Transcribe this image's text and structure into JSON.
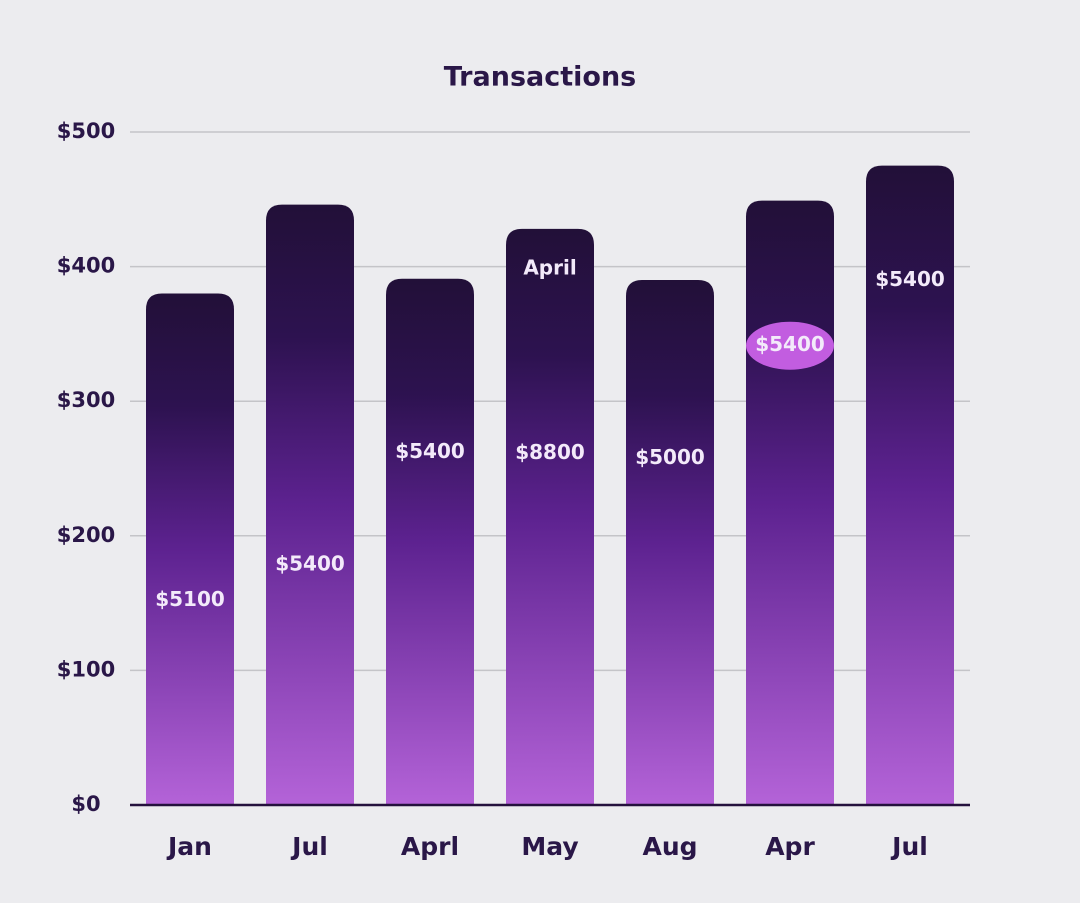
{
  "chart_data": {
    "type": "bar",
    "title": "Transactions",
    "categories": [
      "Jan",
      "Jul",
      "Aprl",
      "May",
      "Aug",
      "Apr",
      "Jul"
    ],
    "values": [
      380,
      446,
      391,
      428,
      390,
      449,
      475
    ],
    "bar_labels": [
      [
        "$5100"
      ],
      [
        "$5400"
      ],
      [
        "$5400"
      ],
      [
        "April",
        "$8800"
      ],
      [
        "$5000"
      ],
      [
        "$5400"
      ],
      [
        "$5400"
      ]
    ],
    "highlight": 5,
    "color": "#b463d8",
    "ylim": [
      0,
      500
    ],
    "yticks": [
      {
        "value": 0,
        "label": "$0"
      },
      {
        "value": 100,
        "label": "$100"
      },
      {
        "value": 200,
        "label": "$200"
      },
      {
        "value": 300,
        "label": "$300"
      },
      {
        "value": 400,
        "label": "$400"
      },
      {
        "value": 500,
        "label": "$500"
      }
    ],
    "grid": true
  }
}
